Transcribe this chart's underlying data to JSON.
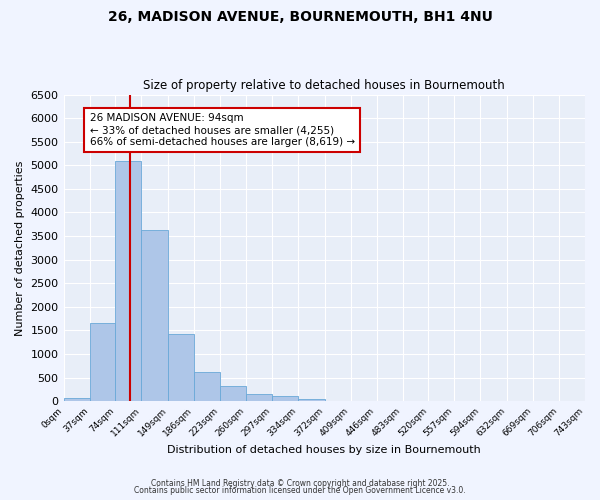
{
  "title": "26, MADISON AVENUE, BOURNEMOUTH, BH1 4NU",
  "subtitle": "Size of property relative to detached houses in Bournemouth",
  "xlabel": "Distribution of detached houses by size in Bournemouth",
  "ylabel": "Number of detached properties",
  "bin_edges": [
    0,
    37,
    74,
    111,
    149,
    186,
    223,
    260,
    297,
    334,
    372,
    409,
    446,
    483,
    520,
    557,
    594,
    632,
    669,
    706,
    743
  ],
  "bar_heights": [
    60,
    1650,
    5100,
    3620,
    1430,
    620,
    320,
    150,
    100,
    50,
    0,
    0,
    0,
    0,
    0,
    0,
    0,
    0,
    0,
    0
  ],
  "bar_color": "#aec6e8",
  "bar_edge_color": "#6aa8d8",
  "property_value": 94,
  "vline_color": "#cc0000",
  "vline_x": 94,
  "annotation_title": "26 MADISON AVENUE: 94sqm",
  "annotation_line2": "← 33% of detached houses are smaller (4,255)",
  "annotation_line3": "66% of semi-detached houses are larger (8,619) →",
  "annotation_box_color": "#cc0000",
  "ylim": [
    0,
    6500
  ],
  "yticks": [
    0,
    500,
    1000,
    1500,
    2000,
    2500,
    3000,
    3500,
    4000,
    4500,
    5000,
    5500,
    6000,
    6500
  ],
  "tick_labels": [
    "0sqm",
    "37sqm",
    "74sqm",
    "111sqm",
    "149sqm",
    "186sqm",
    "223sqm",
    "260sqm",
    "297sqm",
    "334sqm",
    "372sqm",
    "409sqm",
    "446sqm",
    "483sqm",
    "520sqm",
    "557sqm",
    "594sqm",
    "632sqm",
    "669sqm",
    "706sqm",
    "743sqm"
  ],
  "footer1": "Contains HM Land Registry data © Crown copyright and database right 2025.",
  "footer2": "Contains public sector information licensed under the Open Government Licence v3.0.",
  "bg_color": "#f0f4ff",
  "plot_bg_color": "#e8eef8"
}
